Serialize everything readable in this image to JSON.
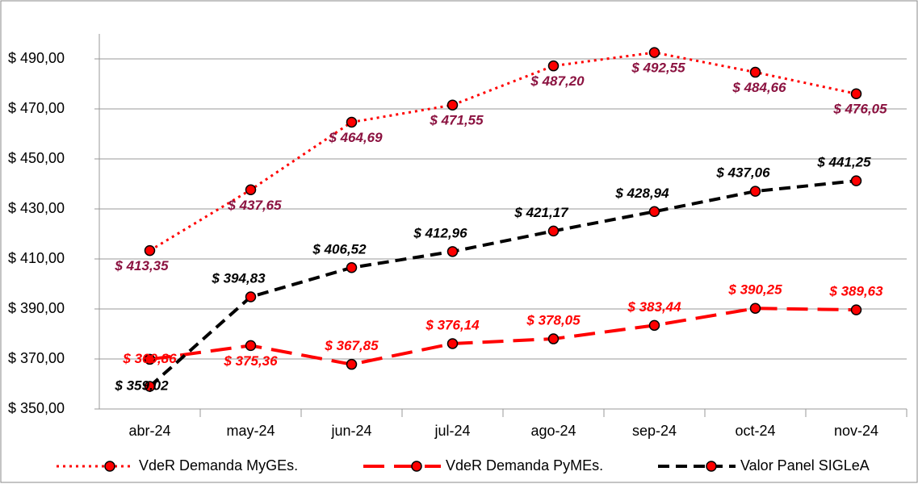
{
  "chart_data": {
    "type": "line",
    "categories": [
      "abr-24",
      "may-24",
      "jun-24",
      "jul-24",
      "ago-24",
      "sep-24",
      "oct-24",
      "nov-24"
    ],
    "series": [
      {
        "name": "VdeR Demanda MyGEs.",
        "color": "#ff0000",
        "label_color": "#8b1240",
        "line_style": "dotted",
        "values": [
          413.35,
          437.65,
          464.69,
          471.55,
          487.2,
          492.55,
          484.66,
          476.05
        ],
        "value_labels": [
          "$ 413,35",
          "$ 437,65",
          "$ 464,69",
          "$ 471,55",
          "$ 487,20",
          "$ 492,55",
          "$ 484,66",
          "$ 476,05"
        ]
      },
      {
        "name": "VdeR Demanda PyMEs.",
        "color": "#ff0000",
        "label_color": "#ff0000",
        "line_style": "long-dash",
        "values": [
          369.86,
          375.36,
          367.85,
          376.14,
          378.05,
          383.44,
          390.25,
          389.63
        ],
        "value_labels": [
          "$ 369,86",
          "$ 375,36",
          "$ 367,85",
          "$ 376,14",
          "$ 378,05",
          "$ 383,44",
          "$ 390,25",
          "$ 389,63"
        ]
      },
      {
        "name": "Valor Panel SIGLeA",
        "color": "#000000",
        "label_color": "#000000",
        "line_style": "dash",
        "values": [
          359.02,
          394.83,
          406.52,
          412.96,
          421.17,
          428.94,
          437.06,
          441.25
        ],
        "value_labels": [
          "$ 359,02",
          "$ 394,83",
          "$ 406,52",
          "$ 412,96",
          "$ 421,17",
          "$ 428,94",
          "$ 437,06",
          "$ 441,25"
        ]
      }
    ],
    "marker_color": "#ff0000",
    "ylim": [
      350,
      500
    ],
    "yticks": [
      {
        "value": 350,
        "label": "$ 350,00"
      },
      {
        "value": 370,
        "label": "$ 370,00"
      },
      {
        "value": 390,
        "label": "$ 390,00"
      },
      {
        "value": 410,
        "label": "$ 410,00"
      },
      {
        "value": 430,
        "label": "$ 430,00"
      },
      {
        "value": 450,
        "label": "$ 450,00"
      },
      {
        "value": 470,
        "label": "$ 470,00"
      },
      {
        "value": 490,
        "label": "$ 490,00"
      }
    ],
    "grid": true,
    "legend": "bottom"
  }
}
